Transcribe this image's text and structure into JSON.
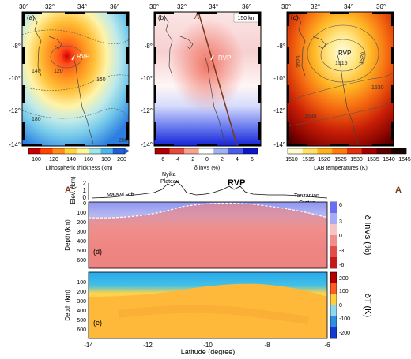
{
  "maps": [
    {
      "letter": "(a)",
      "lon_ticks": [
        "30°",
        "32°",
        "34°",
        "36°"
      ],
      "lat_ticks": [
        "-8°",
        "-10°",
        "-12°",
        "-14°"
      ],
      "contours": [
        "140",
        "120",
        "160",
        "180",
        "200"
      ],
      "site": "RVP",
      "colorbar": {
        "ticks": [
          "100",
          "120",
          "140",
          "160",
          "180",
          "200"
        ],
        "label": "Lithospheric thickness (km)",
        "colors": [
          "#c60000",
          "#ff4500",
          "#ff8c1a",
          "#ffd23f",
          "#fff59d",
          "#9fe6e6",
          "#4fb4e8",
          "#1f5fd1"
        ]
      }
    },
    {
      "letter": "(b)",
      "lon_ticks": [
        "30°",
        "32°",
        "34°",
        "36°"
      ],
      "lat_ticks": [
        "-8°",
        "-10°",
        "-12°",
        "-14°"
      ],
      "profile_label": "A",
      "depth_box": "150 km",
      "site": "RVP",
      "colorbar": {
        "ticks": [
          "-6",
          "-4",
          "-2",
          "0",
          "2",
          "4",
          "6"
        ],
        "label": "δ lnVs (%)",
        "colors": [
          "#b10000",
          "#e64a3c",
          "#f6a290",
          "#ffffff",
          "#9fb1f0",
          "#4a5de8",
          "#0a16c8"
        ]
      }
    },
    {
      "letter": "(c)",
      "lon_ticks": [
        "30°",
        "32°",
        "34°",
        "36°"
      ],
      "lat_ticks": [
        "-8°",
        "-10°",
        "-12°",
        "-14°"
      ],
      "contours": [
        "1525",
        "1515",
        "1520",
        "1530",
        "1535"
      ],
      "site": "RVP",
      "colorbar": {
        "ticks": [
          "1510",
          "1515",
          "1520",
          "1525",
          "1530",
          "1535",
          "1540",
          "1545"
        ],
        "label": "LAB temperatures (K)",
        "colors": [
          "#fffbd0",
          "#ffe066",
          "#ffb01f",
          "#ff7a0d",
          "#e2300a",
          "#a30000",
          "#5a0000",
          "#1a0000"
        ]
      }
    }
  ],
  "profile": {
    "end_left": "A'",
    "end_right": "A",
    "elev_label": "Elev. (km)",
    "elev_ticks": [
      "2",
      "1",
      "0"
    ],
    "labels": {
      "malawi": "Malawi Rift",
      "nyika1": "Nyika",
      "nyika2": "Plateau",
      "rvp": "RVP",
      "tanz1": "Tanzanian",
      "tanz2": "Craton"
    },
    "panel_d": {
      "letter": "(d)",
      "depth_label": "Depth (km)",
      "depth_ticks": [
        "0",
        "100",
        "200",
        "300",
        "400",
        "500",
        "600"
      ],
      "cb_ticks": [
        "6",
        "3",
        "0",
        "-3",
        "-6"
      ],
      "cb_label": "δ lnVs (%)"
    },
    "panel_e": {
      "letter": "(e)",
      "depth_label": "Depth (km)",
      "depth_ticks": [
        "100",
        "200",
        "300",
        "400",
        "500",
        "600"
      ],
      "cb_ticks": [
        "200",
        "100",
        "0",
        "-100",
        "-200"
      ],
      "cb_label": "δT (K)"
    },
    "x_ticks": [
      "-14",
      "-12",
      "-10",
      "-8",
      "-6"
    ],
    "x_label": "Latitude (degree)"
  }
}
